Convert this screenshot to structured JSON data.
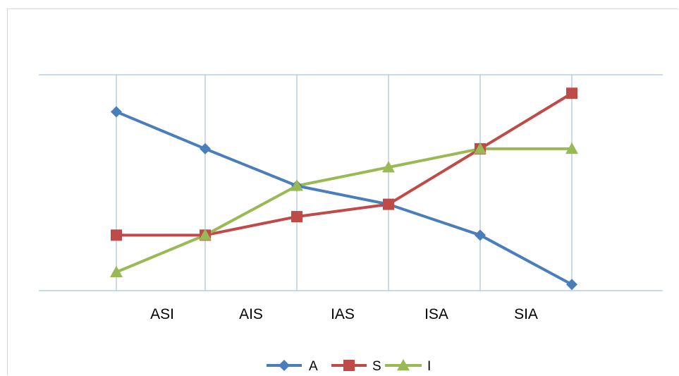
{
  "chart_data": {
    "type": "line",
    "title": "",
    "xlabel": "",
    "ylabel": "",
    "categories": [
      "",
      "ASI",
      "AIS",
      "IAS",
      "ISA",
      "SIA"
    ],
    "grid": true,
    "legend_position": "bottom",
    "series": [
      {
        "name": "A",
        "color": "#4a7ebb",
        "marker": "diamond",
        "values": [
          5.5,
          4.9,
          4.3,
          4.0,
          3.5,
          2.7
        ]
      },
      {
        "name": "S",
        "color": "#be4b48",
        "marker": "square",
        "values": [
          3.5,
          3.5,
          3.8,
          4.0,
          4.9,
          5.8
        ]
      },
      {
        "name": "I",
        "color": "#98b954",
        "marker": "triangle",
        "values": [
          2.9,
          3.5,
          4.3,
          4.6,
          4.9,
          4.9
        ]
      }
    ],
    "ylim": [
      2.6,
      6.1
    ]
  }
}
